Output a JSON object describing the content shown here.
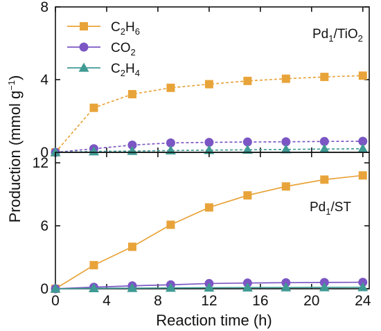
{
  "chart_data": {
    "type": "line",
    "xlabel": "Reaction time (h)",
    "ylabel": "Production (mmol g",
    "ylabel_sup": "−1",
    "ylabel_close": ")",
    "x_ticks": [
      "0",
      "4",
      "8",
      "12",
      "16",
      "20",
      "24"
    ],
    "xlim": [
      0,
      24.5
    ],
    "grid": false,
    "colors": {
      "C2H6": "#e8a43a",
      "CO2": "#7b56c4",
      "C2H4": "#3f9a94"
    },
    "panels": [
      {
        "label_main": "Pd",
        "label_sub": "1",
        "label_rest": "/TiO",
        "label_sub2": "2",
        "ylim": [
          0,
          8
        ],
        "y_ticks": [
          "0",
          "4",
          "8"
        ],
        "line_style": "dashed",
        "legend_position": "top-left",
        "series": [
          {
            "key": "C2H6",
            "name_parts": [
              "C",
              "2",
              "H",
              "6"
            ],
            "marker": "square",
            "x": [
              0,
              3,
              6,
              9,
              12,
              15,
              18,
              21,
              24
            ],
            "values": [
              0,
              2.45,
              3.2,
              3.55,
              3.75,
              3.93,
              4.05,
              4.15,
              4.22
            ]
          },
          {
            "key": "CO2",
            "name_parts": [
              "CO",
              "2"
            ],
            "marker": "circle",
            "x": [
              0,
              3,
              6,
              9,
              12,
              15,
              18,
              21,
              24
            ],
            "values": [
              0,
              0.2,
              0.4,
              0.52,
              0.55,
              0.57,
              0.58,
              0.6,
              0.61
            ]
          },
          {
            "key": "C2H4",
            "name_parts": [
              "C",
              "2",
              "H",
              "4"
            ],
            "marker": "triangle",
            "x": [
              0,
              3,
              6,
              9,
              12,
              15,
              18,
              21,
              24
            ],
            "values": [
              0,
              0.05,
              0.07,
              0.1,
              0.12,
              0.14,
              0.16,
              0.18,
              0.2
            ]
          }
        ]
      },
      {
        "label_main": "Pd",
        "label_sub": "1",
        "label_rest": "/ST",
        "label_sub2": "",
        "ylim": [
          0,
          13
        ],
        "y_ticks": [
          "0",
          "6",
          "12"
        ],
        "line_style": "solid",
        "series": [
          {
            "key": "C2H6",
            "marker": "square",
            "x": [
              0,
              3,
              6,
              9,
              12,
              15,
              18,
              21,
              24
            ],
            "values": [
              0,
              2.25,
              4.0,
              6.1,
              7.75,
              8.9,
              9.75,
              10.4,
              10.8
            ]
          },
          {
            "key": "CO2",
            "marker": "circle",
            "x": [
              0,
              3,
              6,
              9,
              12,
              15,
              18,
              21,
              24
            ],
            "values": [
              0,
              0.15,
              0.28,
              0.38,
              0.5,
              0.55,
              0.58,
              0.6,
              0.62
            ]
          },
          {
            "key": "C2H4",
            "marker": "triangle",
            "x": [
              0,
              3,
              6,
              9,
              12,
              15,
              18,
              21,
              24
            ],
            "values": [
              0,
              0.04,
              0.06,
              0.08,
              0.1,
              0.11,
              0.12,
              0.13,
              0.14
            ]
          }
        ]
      }
    ]
  }
}
